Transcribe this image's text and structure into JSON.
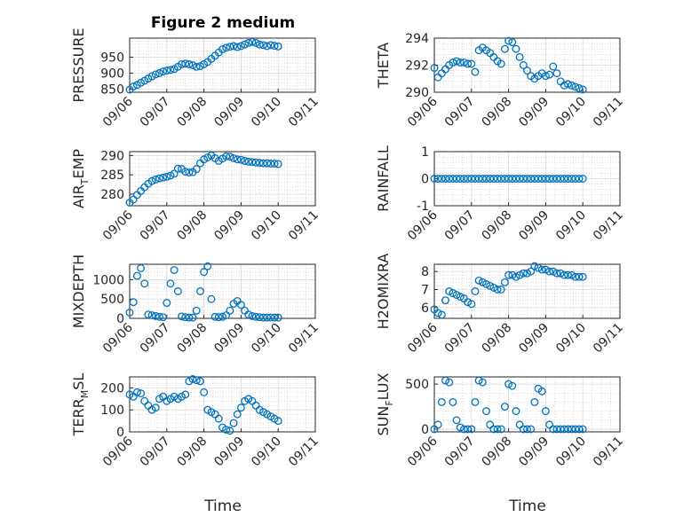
{
  "figure": {
    "title": "Figure 2 medium",
    "xlabel": "Time",
    "marker_color": "#0072BD",
    "grid": "on (major and minor, dotted)"
  },
  "chart_data": [
    {
      "type": "scatter",
      "title": "Figure 2 medium",
      "ylabel": "PRESSURE",
      "ylim": [
        840,
        1010
      ],
      "yticks": [
        850,
        900,
        950
      ],
      "xlim": [
        0,
        5
      ],
      "xticklabels": [
        "09/06",
        "09/07",
        "09/08",
        "09/09",
        "09/10",
        "09/11"
      ],
      "x": [
        0,
        0.1,
        0.2,
        0.3,
        0.4,
        0.5,
        0.6,
        0.7,
        0.8,
        0.9,
        1,
        1.1,
        1.2,
        1.3,
        1.4,
        1.5,
        1.6,
        1.7,
        1.8,
        1.9,
        2,
        2.1,
        2.2,
        2.3,
        2.4,
        2.5,
        2.6,
        2.7,
        2.8,
        2.9,
        3,
        3.1,
        3.2,
        3.3,
        3.4,
        3.5,
        3.6,
        3.7,
        3.8,
        3.9,
        4
      ],
      "y": [
        848,
        858,
        863,
        870,
        876,
        883,
        890,
        896,
        900,
        905,
        908,
        910,
        913,
        920,
        928,
        930,
        928,
        925,
        920,
        922,
        928,
        935,
        945,
        955,
        965,
        975,
        980,
        983,
        985,
        982,
        985,
        990,
        995,
        998,
        995,
        990,
        988,
        985,
        988,
        986,
        984
      ]
    },
    {
      "type": "scatter",
      "ylabel": "THETA",
      "ylim": [
        290,
        294
      ],
      "yticks": [
        290,
        292,
        294
      ],
      "xlim": [
        0,
        5
      ],
      "xticklabels": [
        "09/06",
        "09/07",
        "09/08",
        "09/09",
        "09/10",
        "09/11"
      ],
      "x": [
        0,
        0.1,
        0.2,
        0.3,
        0.4,
        0.5,
        0.6,
        0.7,
        0.8,
        0.9,
        1,
        1.1,
        1.2,
        1.3,
        1.4,
        1.5,
        1.6,
        1.7,
        1.8,
        1.9,
        2,
        2.1,
        2.2,
        2.3,
        2.4,
        2.5,
        2.6,
        2.7,
        2.8,
        2.9,
        3,
        3.1,
        3.2,
        3.3,
        3.4,
        3.5,
        3.6,
        3.7,
        3.8,
        3.9,
        4
      ],
      "y": [
        291.8,
        291.1,
        291.4,
        291.7,
        292.0,
        292.2,
        292.3,
        292.2,
        292.2,
        292.1,
        292.1,
        291.5,
        293.1,
        293.3,
        293.1,
        292.9,
        292.6,
        292.3,
        292.1,
        293.2,
        293.8,
        293.7,
        293.2,
        292.6,
        292.0,
        291.6,
        291.2,
        291.0,
        291.2,
        291.4,
        291.2,
        291.3,
        291.9,
        291.4,
        290.8,
        290.5,
        290.6,
        290.5,
        290.4,
        290.3,
        290.2
      ]
    },
    {
      "type": "scatter",
      "ylabel": "AIR_TEMP",
      "ylim": [
        277,
        291
      ],
      "yticks": [
        280,
        285,
        290
      ],
      "xlim": [
        0,
        5
      ],
      "xticklabels": [
        "09/06",
        "09/07",
        "09/08",
        "09/09",
        "09/10",
        "09/11"
      ],
      "x": [
        0,
        0.1,
        0.2,
        0.3,
        0.4,
        0.5,
        0.6,
        0.7,
        0.8,
        0.9,
        1,
        1.1,
        1.2,
        1.3,
        1.4,
        1.5,
        1.6,
        1.7,
        1.8,
        1.9,
        2,
        2.1,
        2.2,
        2.3,
        2.4,
        2.5,
        2.6,
        2.7,
        2.8,
        2.9,
        3,
        3.1,
        3.2,
        3.3,
        3.4,
        3.5,
        3.6,
        3.7,
        3.8,
        3.9,
        4
      ],
      "y": [
        277.8,
        278.6,
        279.8,
        280.8,
        281.8,
        282.7,
        283.4,
        283.8,
        284.1,
        284.3,
        284.5,
        284.8,
        285.3,
        286.6,
        286.5,
        285.8,
        285.6,
        285.7,
        286.5,
        288.0,
        289.0,
        289.5,
        290.0,
        289.3,
        288.6,
        289.2,
        289.8,
        289.7,
        289.3,
        289.0,
        288.9,
        288.6,
        288.4,
        288.3,
        288.2,
        288.1,
        288.0,
        288.0,
        287.9,
        287.9,
        287.8
      ]
    },
    {
      "type": "scatter",
      "ylabel": "RAINFALL",
      "ylim": [
        -1,
        1
      ],
      "yticks": [
        -1,
        0,
        1
      ],
      "xlim": [
        0,
        5
      ],
      "xticklabels": [
        "09/06",
        "09/07",
        "09/08",
        "09/09",
        "09/10",
        "09/11"
      ],
      "x": [
        0,
        0.1,
        0.2,
        0.3,
        0.4,
        0.5,
        0.6,
        0.7,
        0.8,
        0.9,
        1,
        1.1,
        1.2,
        1.3,
        1.4,
        1.5,
        1.6,
        1.7,
        1.8,
        1.9,
        2,
        2.1,
        2.2,
        2.3,
        2.4,
        2.5,
        2.6,
        2.7,
        2.8,
        2.9,
        3,
        3.1,
        3.2,
        3.3,
        3.4,
        3.5,
        3.6,
        3.7,
        3.8,
        3.9,
        4
      ],
      "y": [
        0,
        0,
        0,
        0,
        0,
        0,
        0,
        0,
        0,
        0,
        0,
        0,
        0,
        0,
        0,
        0,
        0,
        0,
        0,
        0,
        0,
        0,
        0,
        0,
        0,
        0,
        0,
        0,
        0,
        0,
        0,
        0,
        0,
        0,
        0,
        0,
        0,
        0,
        0,
        0,
        0
      ]
    },
    {
      "type": "scatter",
      "ylabel": "MIXDEPTH",
      "ylim": [
        0,
        1400
      ],
      "yticks": [
        0,
        500,
        1000
      ],
      "xlim": [
        0,
        5
      ],
      "xticklabels": [
        "09/06",
        "09/07",
        "09/08",
        "09/09",
        "09/10",
        "09/11"
      ],
      "x": [
        0,
        0.1,
        0.2,
        0.3,
        0.4,
        0.5,
        0.6,
        0.7,
        0.8,
        0.9,
        1,
        1.1,
        1.2,
        1.3,
        1.4,
        1.5,
        1.6,
        1.7,
        1.8,
        1.9,
        2,
        2.1,
        2.2,
        2.3,
        2.4,
        2.5,
        2.6,
        2.7,
        2.8,
        2.9,
        3,
        3.1,
        3.2,
        3.3,
        3.4,
        3.5,
        3.6,
        3.7,
        3.8,
        3.9,
        4
      ],
      "y": [
        150,
        420,
        1100,
        1300,
        900,
        100,
        80,
        60,
        40,
        30,
        400,
        900,
        1250,
        700,
        50,
        30,
        20,
        20,
        200,
        700,
        1200,
        1350,
        500,
        40,
        30,
        40,
        80,
        200,
        380,
        450,
        350,
        200,
        100,
        60,
        40,
        30,
        20,
        20,
        20,
        20,
        20
      ]
    },
    {
      "type": "scatter",
      "ylabel": "H2OMIXRA",
      "ylim": [
        5.4,
        8.4
      ],
      "yticks": [
        6,
        7,
        8
      ],
      "xlim": [
        0,
        5
      ],
      "xticklabels": [
        "09/06",
        "09/07",
        "09/08",
        "09/09",
        "09/10",
        "09/11"
      ],
      "x": [
        0,
        0.1,
        0.2,
        0.3,
        0.4,
        0.5,
        0.6,
        0.7,
        0.8,
        0.9,
        1,
        1.1,
        1.2,
        1.3,
        1.4,
        1.5,
        1.6,
        1.7,
        1.8,
        1.9,
        2,
        2.1,
        2.2,
        2.3,
        2.4,
        2.5,
        2.6,
        2.7,
        2.8,
        2.9,
        3,
        3.1,
        3.2,
        3.3,
        3.4,
        3.5,
        3.6,
        3.7,
        3.8,
        3.9,
        4
      ],
      "y": [
        5.9,
        5.7,
        5.6,
        6.4,
        6.9,
        6.8,
        6.7,
        6.6,
        6.5,
        6.3,
        6.2,
        6.9,
        7.5,
        7.4,
        7.3,
        7.2,
        7.1,
        7.0,
        7.0,
        7.4,
        7.8,
        7.8,
        7.7,
        7.8,
        7.9,
        7.9,
        8.0,
        8.3,
        8.2,
        8.1,
        8.1,
        8.0,
        8.0,
        7.9,
        7.9,
        7.8,
        7.8,
        7.8,
        7.7,
        7.7,
        7.7
      ]
    },
    {
      "type": "scatter",
      "ylabel": "TERR_MSL",
      "ylim": [
        0,
        250
      ],
      "yticks": [
        0,
        100,
        200
      ],
      "xlim": [
        0,
        5
      ],
      "xticklabels": [
        "09/06",
        "09/07",
        "09/08",
        "09/09",
        "09/10",
        "09/11"
      ],
      "x": [
        0,
        0.1,
        0.2,
        0.3,
        0.4,
        0.5,
        0.6,
        0.7,
        0.8,
        0.9,
        1,
        1.1,
        1.2,
        1.3,
        1.4,
        1.5,
        1.6,
        1.7,
        1.8,
        1.9,
        2,
        2.1,
        2.2,
        2.3,
        2.4,
        2.5,
        2.6,
        2.7,
        2.8,
        2.9,
        3,
        3.1,
        3.2,
        3.3,
        3.4,
        3.5,
        3.6,
        3.7,
        3.8,
        3.9,
        4
      ],
      "y": [
        170,
        160,
        180,
        175,
        140,
        120,
        100,
        110,
        150,
        160,
        140,
        150,
        160,
        150,
        160,
        170,
        230,
        240,
        235,
        230,
        180,
        100,
        90,
        80,
        60,
        20,
        10,
        5,
        40,
        80,
        110,
        140,
        150,
        140,
        120,
        100,
        90,
        80,
        70,
        60,
        50
      ]
    },
    {
      "type": "scatter",
      "ylabel": "SUN_FLUX",
      "ylim": [
        -30,
        580
      ],
      "yticks": [
        0,
        500
      ],
      "xlim": [
        0,
        5
      ],
      "xticklabels": [
        "09/06",
        "09/07",
        "09/08",
        "09/09",
        "09/10",
        "09/11"
      ],
      "x": [
        0,
        0.1,
        0.2,
        0.3,
        0.4,
        0.5,
        0.6,
        0.7,
        0.8,
        0.9,
        1,
        1.1,
        1.2,
        1.3,
        1.4,
        1.5,
        1.6,
        1.7,
        1.8,
        1.9,
        2,
        2.1,
        2.2,
        2.3,
        2.4,
        2.5,
        2.6,
        2.7,
        2.8,
        2.9,
        3,
        3.1,
        3.2,
        3.3,
        3.4,
        3.5,
        3.6,
        3.7,
        3.8,
        3.9,
        4
      ],
      "y": [
        0,
        50,
        300,
        540,
        520,
        300,
        100,
        20,
        0,
        0,
        0,
        300,
        540,
        520,
        200,
        50,
        0,
        0,
        0,
        250,
        500,
        480,
        200,
        50,
        0,
        0,
        0,
        300,
        450,
        420,
        200,
        50,
        0,
        0,
        0,
        0,
        0,
        0,
        0,
        0,
        0
      ]
    }
  ]
}
